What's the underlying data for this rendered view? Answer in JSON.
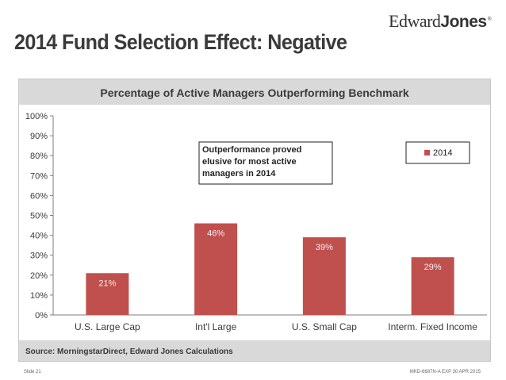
{
  "logo": {
    "part1": "Edward",
    "part2": "Jones",
    "mark": "®"
  },
  "slide_title": "2014 Fund Selection Effect: Negative",
  "annotation": [
    "Outperformance proved",
    "elusive for most active",
    "managers in 2014"
  ],
  "source": "Source: MorningstarDirect, Edward Jones Calculations",
  "footer": {
    "left": "Slide 21",
    "right": "MKD-6687N-A   EXP 30 APR 2015"
  },
  "colors": {
    "bar": "#c0504d",
    "header_bg": "#d9d9d9",
    "title_text": "#3a3a3a"
  },
  "chart_data": {
    "type": "bar",
    "title": "Percentage of Active Managers Outperforming Benchmark",
    "categories": [
      "U.S. Large Cap",
      "Int'l Large",
      "U.S. Small Cap",
      "Interm. Fixed Income"
    ],
    "series": [
      {
        "name": "2014",
        "values": [
          21,
          46,
          39,
          29
        ],
        "labels": [
          "21%",
          "46%",
          "39%",
          "29%"
        ]
      }
    ],
    "yticks": [
      "0%",
      "10%",
      "20%",
      "30%",
      "40%",
      "50%",
      "60%",
      "70%",
      "80%",
      "90%",
      "100%"
    ],
    "ylim": [
      0,
      100
    ],
    "grid": false,
    "legend": "top-right"
  }
}
